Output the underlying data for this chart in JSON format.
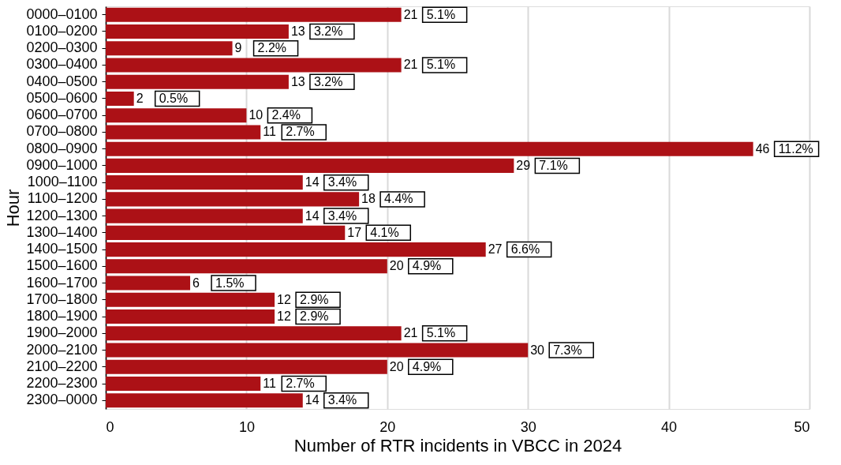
{
  "chart_data": {
    "type": "bar",
    "orientation": "horizontal",
    "xlabel": "Number of RTR incidents in VBCC in 2024",
    "ylabel": "Hour",
    "categories": [
      "0000–0100",
      "0100–0200",
      "0200–0300",
      "0300–0400",
      "0400–0500",
      "0500–0600",
      "0600–0700",
      "0700–0800",
      "0800–0900",
      "0900–1000",
      "1000–1100",
      "1100–1200",
      "1200–1300",
      "1300–1400",
      "1400–1500",
      "1500–1600",
      "1600–1700",
      "1700–1800",
      "1800–1900",
      "1900–2000",
      "2000–2100",
      "2100–2200",
      "2200–2300",
      "2300–0000"
    ],
    "values": [
      21,
      13,
      9,
      21,
      13,
      2,
      10,
      11,
      46,
      29,
      14,
      18,
      14,
      17,
      27,
      20,
      6,
      12,
      12,
      21,
      30,
      20,
      11,
      14
    ],
    "color": "#ac1116",
    "xlim": [
      0,
      50
    ],
    "xticks": [
      0,
      10,
      20,
      30,
      40,
      50
    ],
    "grid": "x",
    "data_labels": true,
    "annotations": [
      {
        "text": "5.1%",
        "x": 21,
        "y": "0000–0100"
      },
      {
        "text": "3.2%",
        "x": 13,
        "y": "0100–0200"
      },
      {
        "text": "2.2%",
        "x": 9,
        "y": "0200–0300"
      },
      {
        "text": "5.1%",
        "x": 21,
        "y": "0300–0400"
      },
      {
        "text": "3.2%",
        "x": 13,
        "y": "0400–0500"
      },
      {
        "text": "0.5%",
        "x": 2,
        "y": "0500–0600"
      },
      {
        "text": "2.4%",
        "x": 10,
        "y": "0600–0700"
      },
      {
        "text": "2.7%",
        "x": 11,
        "y": "0700–0800"
      },
      {
        "text": "11.2%",
        "x": 46,
        "y": "0800–0900"
      },
      {
        "text": "7.1%",
        "x": 29,
        "y": "0900–1000"
      },
      {
        "text": "3.4%",
        "x": 14,
        "y": "1000–1100"
      },
      {
        "text": "4.4%",
        "x": 18,
        "y": "1100–1200"
      },
      {
        "text": "3.4%",
        "x": 14,
        "y": "1200–1300"
      },
      {
        "text": "4.1%",
        "x": 17,
        "y": "1300–1400"
      },
      {
        "text": "6.6%",
        "x": 27,
        "y": "1400–1500"
      },
      {
        "text": "4.9%",
        "x": 20,
        "y": "1500–1600"
      },
      {
        "text": "1.5%",
        "x": 6,
        "y": "1600–1700"
      },
      {
        "text": "2.9%",
        "x": 12,
        "y": "1700–1800"
      },
      {
        "text": "2.9%",
        "x": 12,
        "y": "1800–1900"
      },
      {
        "text": "5.1%",
        "x": 21,
        "y": "1900–2000"
      },
      {
        "text": "7.3%",
        "x": 30,
        "y": "2000–2100"
      },
      {
        "text": "4.9%",
        "x": 20,
        "y": "2100–2200"
      },
      {
        "text": "2.7%",
        "x": 11,
        "y": "2200–2300"
      },
      {
        "text": "3.4%",
        "x": 14,
        "y": "2300–0000"
      }
    ]
  }
}
